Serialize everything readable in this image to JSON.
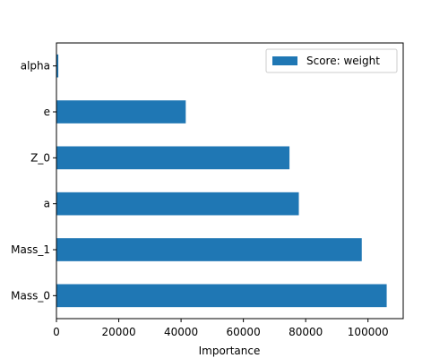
{
  "chart_data": {
    "type": "bar",
    "orientation": "horizontal",
    "title": "",
    "xlabel": "Importance",
    "ylabel": "",
    "categories": [
      "Mass_0",
      "Mass_1",
      "a",
      "Z_0",
      "e",
      "alpha"
    ],
    "series": [
      {
        "name": "Score: weight",
        "values": [
          106000,
          98000,
          77800,
          74800,
          41500,
          600
        ],
        "color": "#1f77b4"
      }
    ],
    "xlim": [
      0,
      111300
    ],
    "xticks": [
      0,
      20000,
      40000,
      60000,
      80000,
      100000
    ],
    "xtick_labels": [
      "0",
      "20000",
      "40000",
      "60000",
      "80000",
      "100000"
    ],
    "grid": false,
    "legend": "top-right"
  }
}
